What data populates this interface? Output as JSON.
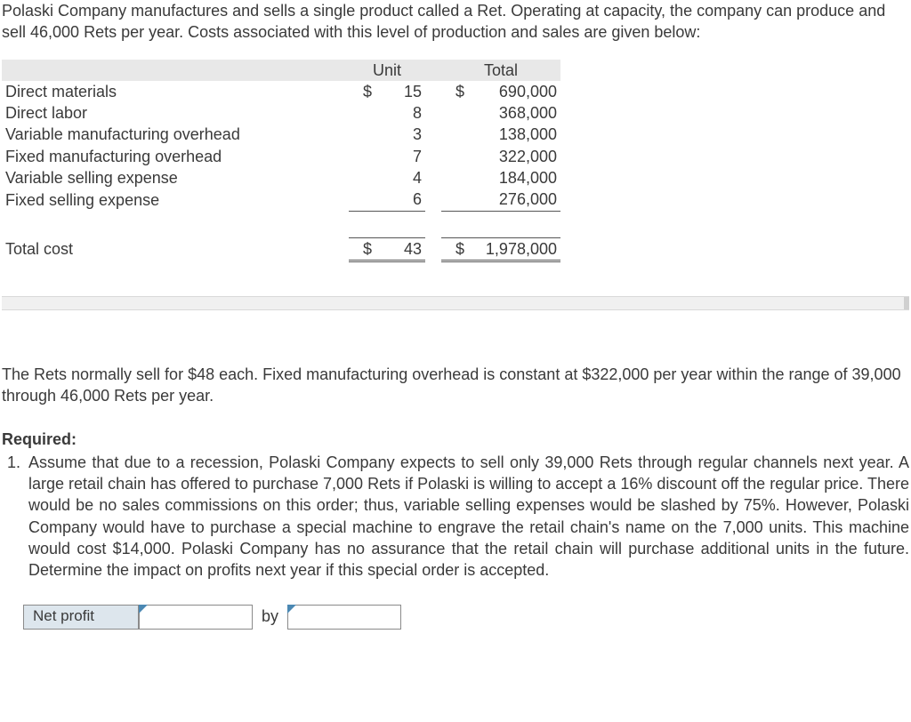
{
  "intro": "Polaski Company manufactures and sells a single product called a Ret. Operating at capacity, the company can produce and sell 46,000 Rets per year. Costs associated with this level of production and sales are given below:",
  "table": {
    "headers": {
      "unit": "Unit",
      "total": "Total"
    },
    "currency": "$",
    "rows": [
      {
        "label": "Direct materials",
        "unit": "15",
        "total": "690,000",
        "show_unit_currency": true,
        "show_total_currency": true
      },
      {
        "label": "Direct labor",
        "unit": "8",
        "total": "368,000"
      },
      {
        "label": "Variable manufacturing overhead",
        "unit": "3",
        "total": "138,000"
      },
      {
        "label": "Fixed manufacturing overhead",
        "unit": "7",
        "total": "322,000"
      },
      {
        "label": "Variable selling expense",
        "unit": "4",
        "total": "184,000"
      },
      {
        "label": "Fixed selling expense",
        "unit": "6",
        "total": "276,000"
      }
    ],
    "total": {
      "label": "Total cost",
      "unit": "43",
      "total": "1,978,000"
    }
  },
  "mid": "The Rets normally sell for $48 each. Fixed manufacturing overhead is constant at $322,000 per year within the range of 39,000 through 46,000 Rets per year.",
  "required_label": "Required:",
  "requirement": "Assume that due to a recession, Polaski Company expects to sell only 39,000 Rets through regular channels next year. A large retail chain has offered to purchase 7,000 Rets if Polaski is willing to accept a 16% discount off the regular price. There would be no sales commissions on this order; thus, variable selling expenses would be slashed by 75%. However, Polaski Company would have to purchase a special machine to engrave the retail chain's name on the 7,000 units. This machine would cost $14,000. Polaski Company has no assurance that the retail chain will purchase additional units in the future. Determine the impact on profits next year if this special order is accepted.",
  "answer": {
    "label": "Net profit",
    "by": "by"
  },
  "colors": {
    "header_bg": "#e8e8e8",
    "input_box_bg": "#dde6ed",
    "flag": "#4b88b3",
    "border": "#8a8a8a"
  }
}
